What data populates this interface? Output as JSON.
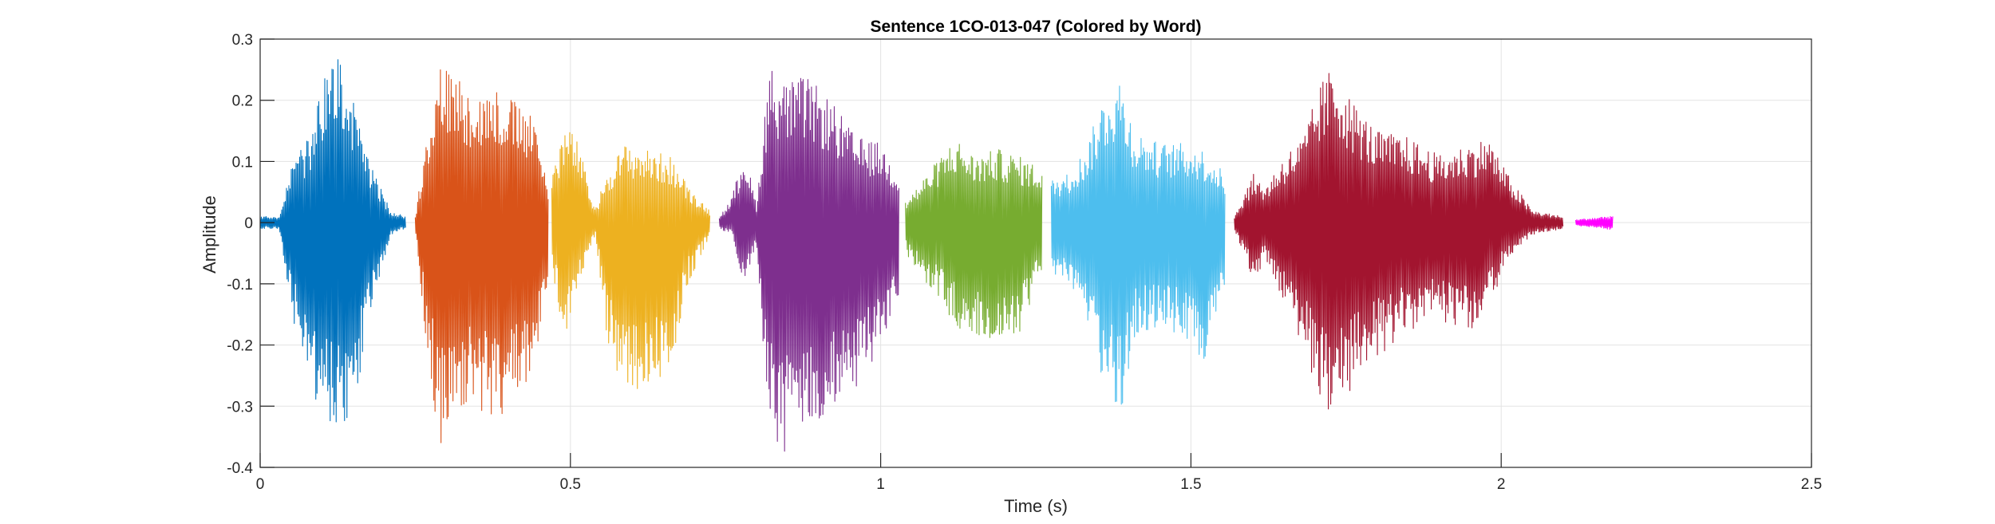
{
  "chart_data": {
    "type": "line",
    "title": "Sentence 1CO-013-047 (Colored by Word)",
    "xlabel": "Time (s)",
    "ylabel": "Amplitude",
    "xlim": [
      0,
      2.5
    ],
    "ylim": [
      -0.4,
      0.3
    ],
    "xticks": [
      0,
      0.5,
      1,
      1.5,
      2,
      2.5
    ],
    "xtick_labels": [
      "0",
      "0.5",
      "1",
      "1.5",
      "2",
      "2.5"
    ],
    "yticks": [
      0.3,
      0.2,
      0.1,
      0,
      -0.1,
      -0.2,
      -0.3,
      -0.4
    ],
    "ytick_labels": [
      "0.3",
      "0.2",
      "0.1",
      "0",
      "-0.1",
      "-0.2",
      "-0.3",
      "-0.4"
    ],
    "grid": true,
    "series": [
      {
        "color": "#0072BD",
        "t_start": 0.0,
        "t_end": 0.235,
        "envelope": [
          [
            0.0,
            0.01,
            -0.01
          ],
          [
            0.03,
            0.01,
            -0.01
          ],
          [
            0.05,
            0.1,
            -0.15
          ],
          [
            0.08,
            0.14,
            -0.25
          ],
          [
            0.1,
            0.24,
            -0.33
          ],
          [
            0.125,
            0.28,
            -0.36
          ],
          [
            0.15,
            0.2,
            -0.3
          ],
          [
            0.18,
            0.09,
            -0.15
          ],
          [
            0.21,
            0.02,
            -0.02
          ],
          [
            0.235,
            0.01,
            -0.01
          ]
        ]
      },
      {
        "color": "#D95319",
        "t_start": 0.25,
        "t_end": 0.465,
        "envelope": [
          [
            0.25,
            0.01,
            -0.01
          ],
          [
            0.27,
            0.16,
            -0.22
          ],
          [
            0.29,
            0.26,
            -0.37
          ],
          [
            0.32,
            0.24,
            -0.3
          ],
          [
            0.35,
            0.21,
            -0.31
          ],
          [
            0.38,
            0.22,
            -0.32
          ],
          [
            0.41,
            0.2,
            -0.3
          ],
          [
            0.44,
            0.17,
            -0.25
          ],
          [
            0.465,
            0.06,
            -0.1
          ]
        ]
      },
      {
        "color": "#EDB120",
        "t_start": 0.47,
        "t_end": 0.725,
        "envelope": [
          [
            0.47,
            0.08,
            -0.08
          ],
          [
            0.49,
            0.16,
            -0.2
          ],
          [
            0.51,
            0.14,
            -0.12
          ],
          [
            0.54,
            0.02,
            -0.02
          ],
          [
            0.56,
            0.09,
            -0.2
          ],
          [
            0.59,
            0.13,
            -0.29
          ],
          [
            0.62,
            0.12,
            -0.27
          ],
          [
            0.66,
            0.11,
            -0.25
          ],
          [
            0.69,
            0.06,
            -0.1
          ],
          [
            0.725,
            0.02,
            -0.02
          ]
        ]
      },
      {
        "color": "#7E2F8E",
        "t_start": 0.74,
        "t_end": 1.03,
        "envelope": [
          [
            0.74,
            0.01,
            -0.01
          ],
          [
            0.76,
            0.04,
            -0.02
          ],
          [
            0.78,
            0.12,
            -0.1
          ],
          [
            0.8,
            0.03,
            -0.04
          ],
          [
            0.82,
            0.26,
            -0.35
          ],
          [
            0.85,
            0.23,
            -0.39
          ],
          [
            0.88,
            0.24,
            -0.34
          ],
          [
            0.92,
            0.2,
            -0.32
          ],
          [
            0.96,
            0.14,
            -0.28
          ],
          [
            1.0,
            0.13,
            -0.2
          ],
          [
            1.03,
            0.08,
            -0.12
          ]
        ]
      },
      {
        "color": "#77AC30",
        "t_start": 1.04,
        "t_end": 1.26,
        "envelope": [
          [
            1.04,
            0.04,
            -0.05
          ],
          [
            1.06,
            0.06,
            -0.08
          ],
          [
            1.09,
            0.1,
            -0.12
          ],
          [
            1.12,
            0.14,
            -0.17
          ],
          [
            1.15,
            0.11,
            -0.19
          ],
          [
            1.19,
            0.12,
            -0.21
          ],
          [
            1.22,
            0.11,
            -0.19
          ],
          [
            1.26,
            0.09,
            -0.08
          ]
        ]
      },
      {
        "color": "#4DBEEE",
        "t_start": 1.275,
        "t_end": 1.555,
        "envelope": [
          [
            1.275,
            0.07,
            -0.08
          ],
          [
            1.3,
            0.08,
            -0.11
          ],
          [
            1.33,
            0.12,
            -0.15
          ],
          [
            1.36,
            0.21,
            -0.27
          ],
          [
            1.385,
            0.24,
            -0.33
          ],
          [
            1.41,
            0.15,
            -0.19
          ],
          [
            1.45,
            0.13,
            -0.17
          ],
          [
            1.49,
            0.13,
            -0.2
          ],
          [
            1.52,
            0.12,
            -0.23
          ],
          [
            1.555,
            0.08,
            -0.12
          ]
        ]
      },
      {
        "color": "#A2142F",
        "t_start": 1.57,
        "t_end": 2.1,
        "envelope": [
          [
            1.57,
            0.01,
            -0.01
          ],
          [
            1.6,
            0.08,
            -0.1
          ],
          [
            1.62,
            0.06,
            -0.06
          ],
          [
            1.65,
            0.11,
            -0.14
          ],
          [
            1.68,
            0.14,
            -0.2
          ],
          [
            1.71,
            0.23,
            -0.3
          ],
          [
            1.73,
            0.26,
            -0.32
          ],
          [
            1.76,
            0.2,
            -0.27
          ],
          [
            1.8,
            0.15,
            -0.22
          ],
          [
            1.85,
            0.14,
            -0.18
          ],
          [
            1.9,
            0.11,
            -0.16
          ],
          [
            1.95,
            0.13,
            -0.18
          ],
          [
            1.98,
            0.14,
            -0.14
          ],
          [
            2.01,
            0.08,
            -0.06
          ],
          [
            2.05,
            0.02,
            -0.02
          ],
          [
            2.1,
            0.01,
            -0.01
          ]
        ]
      },
      {
        "color": "#FF00FF",
        "t_start": 2.12,
        "t_end": 2.18,
        "envelope": [
          [
            2.12,
            0.005,
            -0.005
          ],
          [
            2.15,
            0.008,
            -0.008
          ],
          [
            2.18,
            0.012,
            -0.012
          ]
        ]
      }
    ]
  }
}
